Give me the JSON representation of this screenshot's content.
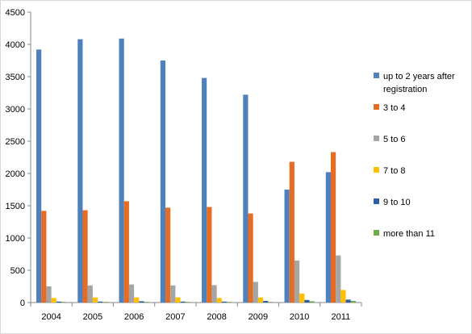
{
  "chart_data": {
    "type": "bar",
    "categories": [
      "2004",
      "2005",
      "2006",
      "2007",
      "2008",
      "2009",
      "2010",
      "2011"
    ],
    "ylim": [
      0,
      4500
    ],
    "yticks": [
      "0",
      "500",
      "1000",
      "1500",
      "2000",
      "2500",
      "3000",
      "3500",
      "4000",
      "4500"
    ],
    "grid": false,
    "legend_position": "right",
    "series": [
      {
        "name": "up to 2 years after registration",
        "legend_lines": [
          "up to 2 years after",
          "registration"
        ],
        "color": "#4F81BD",
        "values": [
          3920,
          4080,
          4090,
          3750,
          3480,
          3220,
          1750,
          2020
        ]
      },
      {
        "name": "3 to 4",
        "legend_lines": [
          "3 to 4"
        ],
        "color": "#E46C24",
        "values": [
          1420,
          1430,
          1570,
          1470,
          1480,
          1380,
          2180,
          2330
        ]
      },
      {
        "name": "5 to 6",
        "legend_lines": [
          "5 to 6"
        ],
        "color": "#A5A5A5",
        "values": [
          250,
          265,
          280,
          265,
          270,
          320,
          650,
          730
        ]
      },
      {
        "name": "7 to 8",
        "legend_lines": [
          "7 to 8"
        ],
        "color": "#FFC000",
        "values": [
          70,
          80,
          80,
          80,
          70,
          80,
          140,
          195
        ]
      },
      {
        "name": "9 to 10",
        "legend_lines": [
          "9 to 10"
        ],
        "color": "#2E5FA8",
        "values": [
          15,
          15,
          20,
          15,
          15,
          25,
          40,
          45
        ]
      },
      {
        "name": "more than 11",
        "legend_lines": [
          "more than 11"
        ],
        "color": "#70AD47",
        "values": [
          10,
          10,
          10,
          10,
          10,
          10,
          20,
          25
        ]
      }
    ]
  }
}
